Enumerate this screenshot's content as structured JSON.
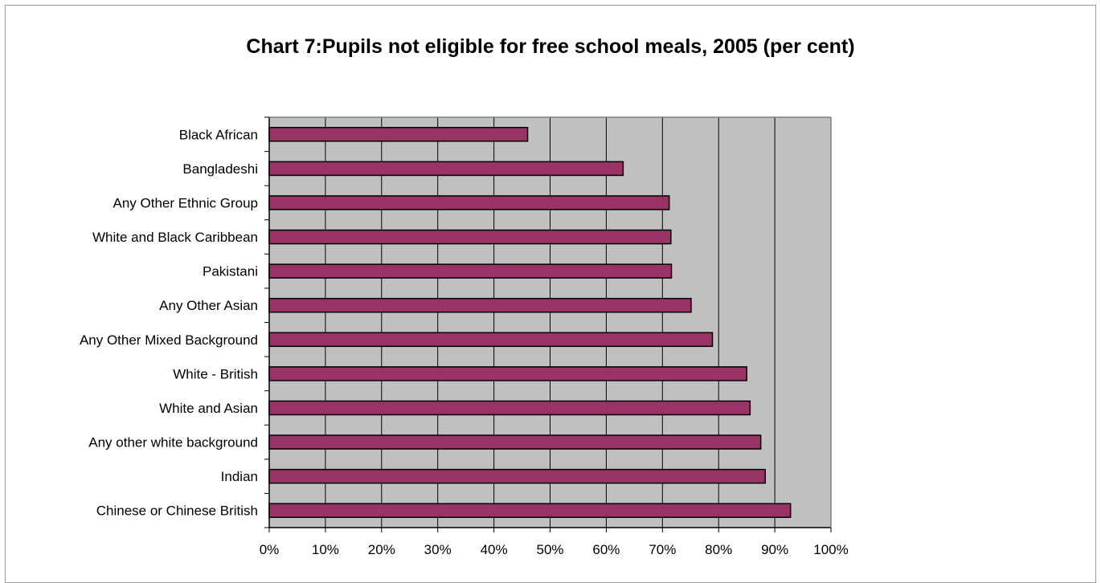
{
  "chart_data": {
    "type": "bar",
    "orientation": "horizontal",
    "title": "Chart 7:Pupils not eligible for free school meals, 2005 (per cent)",
    "xlabel": "",
    "ylabel": "",
    "xlim": [
      0,
      100
    ],
    "x_ticks": [
      "0%",
      "10%",
      "20%",
      "30%",
      "40%",
      "50%",
      "60%",
      "70%",
      "80%",
      "90%",
      "100%"
    ],
    "grid": true,
    "legend": "none",
    "categories": [
      "Black African",
      "Bangladeshi",
      "Any Other Ethnic Group",
      "White and Black Caribbean",
      "Pakistani",
      "Any Other Asian",
      "Any Other Mixed Background",
      "White - British",
      "White and Asian",
      "Any other white background",
      "Indian",
      "Chinese or Chinese British"
    ],
    "values": [
      46,
      63,
      71.2,
      71.5,
      71.6,
      75.1,
      78.9,
      85,
      85.6,
      87.5,
      88.3,
      92.8
    ],
    "colors": {
      "bar_fill": "#993366",
      "bar_stroke": "#000000",
      "plot_background": "#c0c0c0",
      "gridline": "#000000"
    }
  }
}
